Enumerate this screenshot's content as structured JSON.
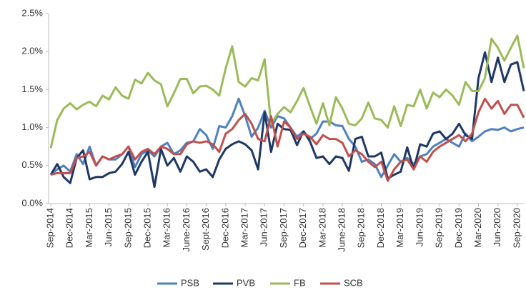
{
  "chart_data": {
    "type": "line",
    "categories": [
      "Sep-2014",
      null,
      null,
      "Dec-2014",
      null,
      null,
      "Mar-2015",
      null,
      null,
      "Jun-2015",
      null,
      null,
      "Sep-2015",
      null,
      null,
      "Dec-2015",
      null,
      null,
      "Mar-2016",
      null,
      null,
      "June-2016",
      null,
      null,
      "Sept-2016",
      null,
      null,
      "Dec-2016",
      null,
      null,
      "Mar-2017",
      null,
      null,
      "Jun-2017",
      null,
      null,
      "Sep-2017",
      null,
      null,
      "Dec-2017",
      null,
      null,
      "Mar-2018",
      null,
      null,
      "June-2018",
      null,
      null,
      "Sep-2018",
      null,
      null,
      "Dec-2018",
      null,
      null,
      "Mar-2019",
      null,
      null,
      "Jun-2019",
      null,
      null,
      "Sep-2019",
      null,
      null,
      "Dec-2019",
      null,
      null,
      "Mar-2020",
      null,
      null,
      "Jun-2020",
      null,
      null,
      "Sep-2020",
      null
    ],
    "series": [
      {
        "name": "PSB",
        "color": "#4f81bd",
        "values": [
          0.38,
          0.45,
          0.5,
          0.42,
          0.65,
          0.52,
          0.75,
          0.5,
          0.62,
          0.58,
          0.58,
          0.65,
          0.75,
          0.48,
          0.65,
          0.7,
          0.62,
          0.75,
          0.8,
          0.65,
          0.7,
          0.8,
          0.82,
          0.98,
          0.9,
          0.72,
          1.02,
          1.0,
          1.15,
          1.38,
          1.15,
          0.88,
          1.0,
          1.22,
          1.0,
          1.15,
          1.12,
          1.0,
          0.88,
          0.95,
          0.85,
          0.92,
          1.08,
          1.08,
          1.03,
          1.02,
          0.85,
          0.75,
          0.55,
          0.58,
          0.52,
          0.35,
          0.5,
          0.65,
          0.55,
          0.6,
          0.52,
          0.62,
          0.65,
          0.75,
          0.8,
          0.85,
          0.8,
          0.75,
          0.92,
          0.82,
          0.88,
          0.95,
          0.98,
          0.97,
          1.0,
          0.95,
          0.98,
          1.0
        ]
      },
      {
        "name": "PVB",
        "color": "#1f3864",
        "values": [
          0.38,
          0.52,
          0.35,
          0.27,
          0.6,
          0.7,
          0.32,
          0.35,
          0.35,
          0.4,
          0.42,
          0.52,
          0.68,
          0.38,
          0.55,
          0.68,
          0.22,
          0.72,
          0.5,
          0.6,
          0.42,
          0.62,
          0.55,
          0.42,
          0.45,
          0.35,
          0.58,
          0.72,
          0.78,
          0.82,
          0.78,
          0.7,
          0.45,
          1.2,
          0.68,
          1.05,
          0.98,
          0.97,
          0.77,
          0.95,
          0.82,
          0.6,
          0.62,
          0.52,
          0.62,
          0.6,
          0.43,
          0.85,
          0.88,
          0.62,
          0.62,
          0.67,
          0.33,
          0.38,
          0.42,
          0.74,
          0.45,
          0.78,
          0.75,
          0.92,
          0.95,
          0.85,
          0.92,
          1.05,
          0.9,
          0.85,
          1.65,
          1.99,
          1.6,
          1.92,
          1.6,
          1.83,
          1.86,
          1.48
        ]
      },
      {
        "name": "FB",
        "color": "#9bbb59",
        "values": [
          0.73,
          1.1,
          1.25,
          1.32,
          1.24,
          1.3,
          1.34,
          1.28,
          1.42,
          1.37,
          1.53,
          1.42,
          1.38,
          1.63,
          1.58,
          1.72,
          1.62,
          1.57,
          1.28,
          1.45,
          1.64,
          1.64,
          1.45,
          1.54,
          1.55,
          1.5,
          1.42,
          1.78,
          2.07,
          1.6,
          1.54,
          1.65,
          1.62,
          1.9,
          1.05,
          1.18,
          1.27,
          1.2,
          1.35,
          1.52,
          1.28,
          1.05,
          1.32,
          1.03,
          1.4,
          1.25,
          1.05,
          1.03,
          1.12,
          1.33,
          1.12,
          1.1,
          1.0,
          1.28,
          1.02,
          1.3,
          1.28,
          1.5,
          1.25,
          1.46,
          1.4,
          1.5,
          1.42,
          1.3,
          1.6,
          1.48,
          1.48,
          1.65,
          2.17,
          2.05,
          1.88,
          2.05,
          2.21,
          1.78
        ]
      },
      {
        "name": "SCB",
        "color": "#c0504d",
        "values": [
          0.38,
          0.4,
          0.4,
          0.4,
          0.6,
          0.62,
          0.68,
          0.5,
          0.62,
          0.58,
          0.62,
          0.65,
          0.75,
          0.58,
          0.68,
          0.72,
          0.65,
          0.75,
          0.72,
          0.65,
          0.65,
          0.78,
          0.82,
          0.8,
          0.82,
          0.78,
          0.68,
          0.92,
          0.98,
          1.1,
          1.18,
          1.05,
          0.85,
          0.82,
          1.15,
          0.75,
          1.08,
          1.0,
          0.85,
          0.92,
          0.88,
          0.78,
          0.9,
          0.85,
          0.85,
          0.8,
          0.62,
          0.7,
          0.65,
          0.55,
          0.48,
          0.55,
          0.3,
          0.45,
          0.55,
          0.58,
          0.45,
          0.62,
          0.55,
          0.68,
          0.75,
          0.8,
          0.85,
          0.9,
          0.82,
          0.92,
          1.2,
          1.38,
          1.25,
          1.35,
          1.18,
          1.3,
          1.3,
          1.13
        ]
      }
    ],
    "ylim": [
      0,
      2.5
    ],
    "yticks": [
      {
        "value": 0,
        "label": "0.0%"
      },
      {
        "value": 0.5,
        "label": "0.5%"
      },
      {
        "value": 1,
        "label": "1.0%"
      },
      {
        "value": 1.5,
        "label": "1.5%"
      },
      {
        "value": 2,
        "label": "2.0%"
      },
      {
        "value": 2.5,
        "label": "2.5%"
      }
    ],
    "grid": false,
    "legend": "bottom"
  }
}
